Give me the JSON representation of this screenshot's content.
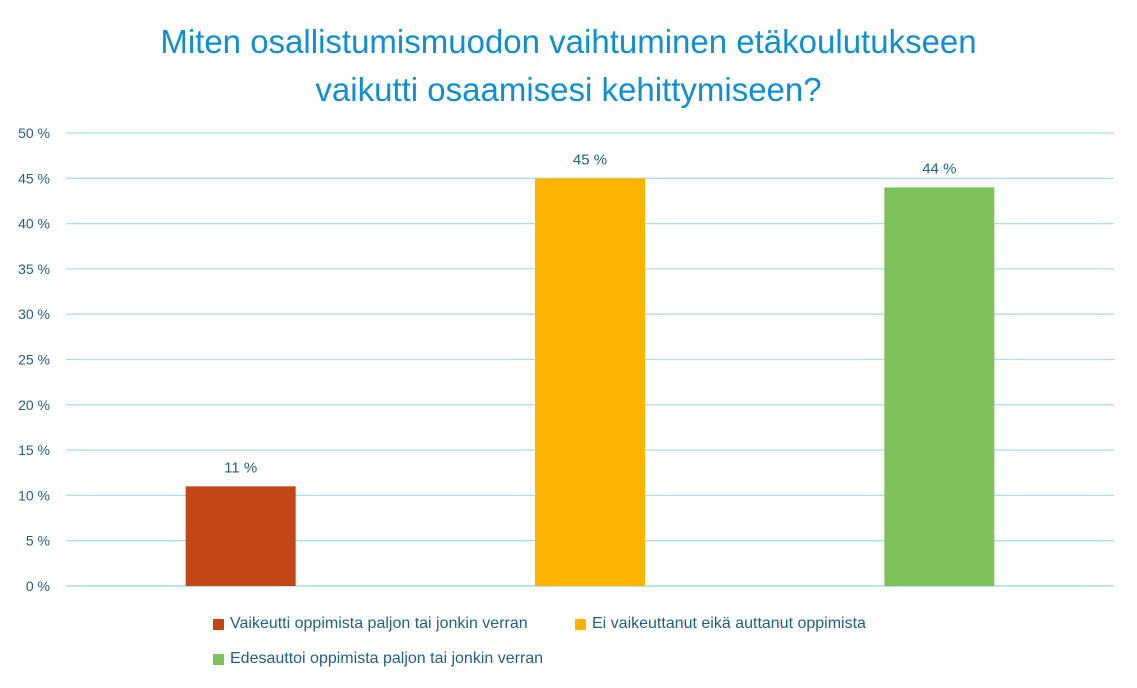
{
  "chart_data": {
    "type": "bar",
    "title_lines": [
      "Miten osallistumismuodon vaihtuminen etäkoulutukseen",
      "vaikutti osaamisesi kehittymiseen?"
    ],
    "categories": [
      "Vaikeutti oppimista paljon tai jonkin verran",
      "Ei vaikeuttanut eikä auttanut oppimista",
      "Edesauttoi oppimista paljon tai jonkin verran"
    ],
    "values": [
      11,
      45,
      44
    ],
    "data_labels": [
      "11 %",
      "45 %",
      "44 %"
    ],
    "colors": [
      "#c34716",
      "#ffb400",
      "#7fc25b"
    ],
    "ylim": [
      0,
      50
    ],
    "y_ticks": [
      0,
      5,
      10,
      15,
      20,
      25,
      30,
      35,
      40,
      45,
      50
    ],
    "y_tick_labels": [
      "0 %",
      "5 %",
      "10 %",
      "15 %",
      "20 %",
      "25 %",
      "30 %",
      "35 %",
      "40 %",
      "45 %",
      "50 %"
    ],
    "grid": true,
    "legend_position": "bottom",
    "xlabel": "",
    "ylabel": ""
  }
}
